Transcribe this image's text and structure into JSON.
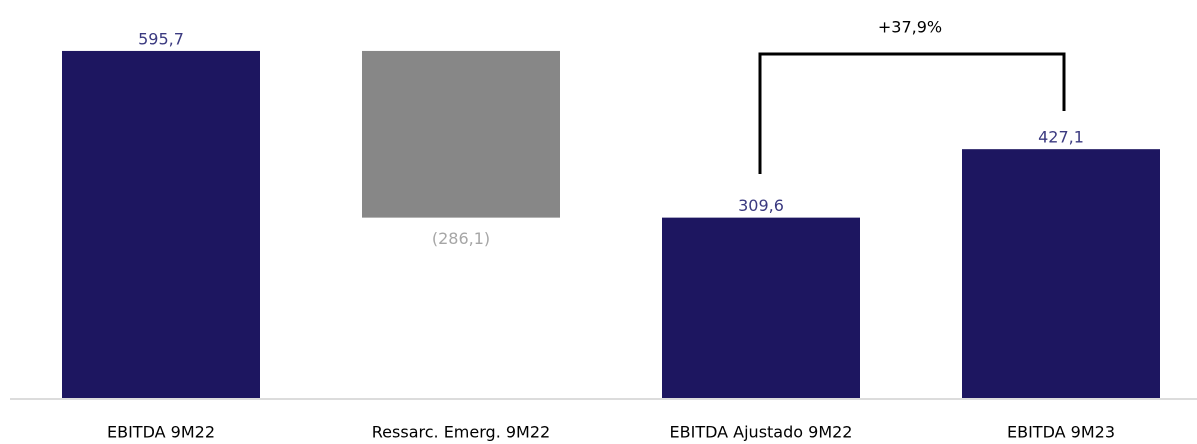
{
  "chart_data": {
    "type": "waterfall",
    "categories": [
      "EBITDA 9M22",
      "Ressarc. Emerg. 9M22",
      "EBITDA Ajustado 9M22",
      "EBITDA 9M23"
    ],
    "values": [
      595.7,
      -286.1,
      309.6,
      427.1
    ],
    "value_labels": [
      "595,7",
      "(286,1)",
      "309,6",
      "427,1"
    ],
    "measure": [
      "absolute",
      "relative",
      "total",
      "absolute"
    ],
    "colors": [
      "#1d1660",
      "#878787",
      "#1d1660",
      "#1d1660"
    ],
    "label_colors": [
      "#3b3a80",
      "#a6a6a6",
      "#3b3a80",
      "#3b3a80"
    ],
    "annotation": "+37,9%"
  }
}
